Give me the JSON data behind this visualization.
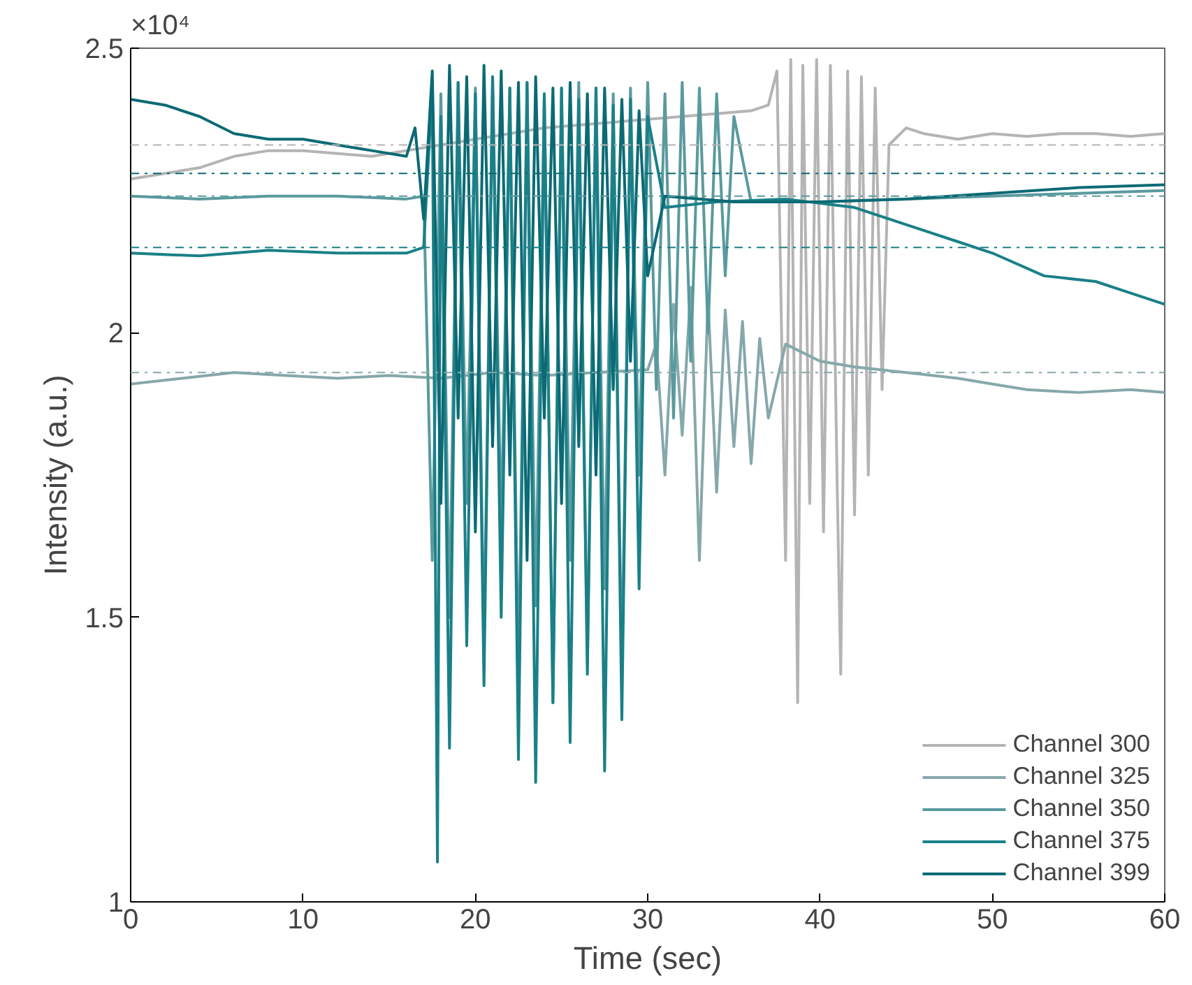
{
  "chart_data": {
    "type": "line",
    "xlabel": "Time (sec)",
    "ylabel": "Intensity (a.u.)",
    "annotations": [
      "×10⁴"
    ],
    "xlim": [
      0,
      60
    ],
    "xticks": [
      0,
      10,
      20,
      30,
      40,
      50,
      60
    ],
    "ylim": [
      1,
      2.5
    ],
    "yticks": [
      1,
      1.5,
      2,
      2.5
    ],
    "grid": false,
    "legend": "bottom right",
    "marker": "none",
    "line_style": "solid",
    "ref_lines": [
      {
        "axis": "y",
        "value": 2.33,
        "color": "#b4b4b4",
        "line_style": "dashdot"
      },
      {
        "axis": "y",
        "value": 2.28,
        "color": "#0b6a74",
        "line_style": "dashdot"
      },
      {
        "axis": "y",
        "value": 2.24,
        "color": "#5a9a9e",
        "line_style": "dashdot"
      },
      {
        "axis": "y",
        "value": 2.15,
        "color": "#1a8088",
        "line_style": "dashdot"
      },
      {
        "axis": "y",
        "value": 1.93,
        "color": "#86a8aa",
        "line_style": "dashdot"
      }
    ],
    "series": [
      {
        "name": "Channel 300",
        "color": "#b4b4b4",
        "x": [
          0,
          2,
          4,
          6,
          8,
          10,
          12,
          14,
          16,
          18,
          20,
          22,
          24,
          26,
          28,
          30,
          32,
          34,
          36,
          37,
          37.5,
          38,
          38.3,
          38.7,
          39,
          39.4,
          39.8,
          40.2,
          40.6,
          41,
          41.2,
          41.6,
          42,
          42.4,
          42.8,
          43.2,
          43.6,
          44,
          45,
          46,
          48,
          50,
          52,
          54,
          56,
          58,
          60
        ],
        "values": [
          2.27,
          2.28,
          2.29,
          2.31,
          2.32,
          2.32,
          2.315,
          2.31,
          2.32,
          2.33,
          2.34,
          2.35,
          2.36,
          2.365,
          2.37,
          2.375,
          2.38,
          2.385,
          2.39,
          2.4,
          2.46,
          1.6,
          2.48,
          1.35,
          2.47,
          1.7,
          2.48,
          1.65,
          2.47,
          1.72,
          1.4,
          2.46,
          1.68,
          2.45,
          1.75,
          2.43,
          1.9,
          2.33,
          2.36,
          2.35,
          2.34,
          2.35,
          2.345,
          2.35,
          2.35,
          2.345,
          2.35
        ]
      },
      {
        "name": "Channel 325",
        "color": "#86a8aa",
        "x": [
          0,
          3,
          6,
          9,
          12,
          15,
          18,
          21,
          24,
          27,
          30,
          30.5,
          31,
          31.5,
          32,
          32.5,
          33,
          33.5,
          34,
          34.5,
          35,
          35.5,
          36,
          36.5,
          37,
          38,
          40,
          42,
          45,
          48,
          50,
          52,
          55,
          58,
          60
        ],
        "values": [
          1.91,
          1.92,
          1.93,
          1.925,
          1.92,
          1.925,
          1.92,
          1.93,
          1.925,
          1.93,
          1.935,
          1.98,
          1.75,
          2.05,
          1.82,
          2.08,
          1.6,
          2.06,
          1.72,
          2.04,
          1.8,
          2.02,
          1.77,
          1.99,
          1.85,
          1.98,
          1.95,
          1.94,
          1.93,
          1.92,
          1.91,
          1.9,
          1.895,
          1.9,
          1.895
        ]
      },
      {
        "name": "Channel 350",
        "color": "#5a9a9e",
        "x": [
          0,
          4,
          8,
          12,
          16,
          17,
          17.5,
          18,
          18.5,
          19,
          19.5,
          20,
          20.5,
          21,
          21.5,
          22,
          22.5,
          23,
          23.5,
          24,
          24.5,
          25,
          25.5,
          26,
          26.5,
          27,
          27.5,
          28,
          28.5,
          29,
          29.5,
          30,
          30.5,
          31,
          31.5,
          32,
          32.5,
          33,
          33.5,
          34,
          34.5,
          35,
          36,
          40,
          45,
          50,
          55,
          60
        ],
        "values": [
          2.24,
          2.235,
          2.24,
          2.24,
          2.235,
          2.24,
          1.6,
          2.42,
          1.5,
          2.44,
          1.7,
          2.43,
          1.45,
          2.45,
          1.65,
          2.43,
          1.38,
          2.44,
          1.52,
          2.42,
          1.35,
          2.43,
          1.6,
          2.44,
          1.42,
          2.43,
          1.55,
          2.42,
          1.39,
          2.43,
          1.75,
          2.44,
          1.9,
          2.42,
          1.85,
          2.44,
          1.95,
          2.43,
          2.0,
          2.42,
          2.1,
          2.38,
          2.23,
          2.23,
          2.235,
          2.24,
          2.245,
          2.25
        ]
      },
      {
        "name": "Channel 375",
        "color": "#1a8088",
        "x": [
          0,
          4,
          8,
          12,
          16,
          17,
          17.5,
          17.8,
          18,
          18.5,
          19,
          19.5,
          20,
          20.5,
          21,
          21.5,
          22,
          22.5,
          23,
          23.5,
          24,
          24.5,
          25,
          25.5,
          26,
          26.5,
          27,
          27.5,
          28,
          28.5,
          29,
          29.5,
          30,
          31,
          34,
          38,
          42,
          45,
          48,
          50,
          53,
          56,
          58,
          60
        ],
        "values": [
          2.14,
          2.135,
          2.145,
          2.14,
          2.14,
          2.15,
          2.43,
          1.07,
          2.38,
          1.27,
          2.44,
          1.45,
          2.42,
          1.38,
          2.45,
          1.5,
          2.43,
          1.25,
          2.44,
          1.21,
          2.42,
          1.35,
          2.43,
          1.28,
          2.41,
          1.4,
          2.43,
          1.23,
          2.4,
          1.32,
          2.41,
          1.55,
          2.38,
          2.22,
          2.23,
          2.235,
          2.22,
          2.19,
          2.16,
          2.14,
          2.1,
          2.09,
          2.07,
          2.05
        ]
      },
      {
        "name": "Channel 399",
        "color": "#0b6a74",
        "x": [
          0,
          2,
          4,
          6,
          8,
          10,
          12,
          14,
          16,
          16.5,
          17,
          17.5,
          18,
          18.5,
          19,
          19.5,
          20,
          20.5,
          21,
          21.5,
          22,
          22.5,
          23,
          23.5,
          24,
          24.5,
          25,
          25.5,
          26,
          26.5,
          27,
          27.5,
          28,
          28.5,
          29,
          29.5,
          30,
          31,
          35,
          40,
          45,
          50,
          55,
          60
        ],
        "values": [
          2.41,
          2.4,
          2.38,
          2.35,
          2.34,
          2.34,
          2.33,
          2.32,
          2.31,
          2.36,
          2.2,
          2.46,
          1.7,
          2.47,
          1.85,
          2.45,
          1.65,
          2.47,
          1.8,
          2.46,
          1.75,
          2.44,
          1.6,
          2.45,
          1.85,
          2.43,
          1.7,
          2.44,
          1.8,
          2.42,
          1.75,
          2.43,
          1.9,
          2.41,
          1.95,
          2.39,
          2.1,
          2.24,
          2.23,
          2.23,
          2.235,
          2.245,
          2.255,
          2.26
        ]
      }
    ]
  }
}
